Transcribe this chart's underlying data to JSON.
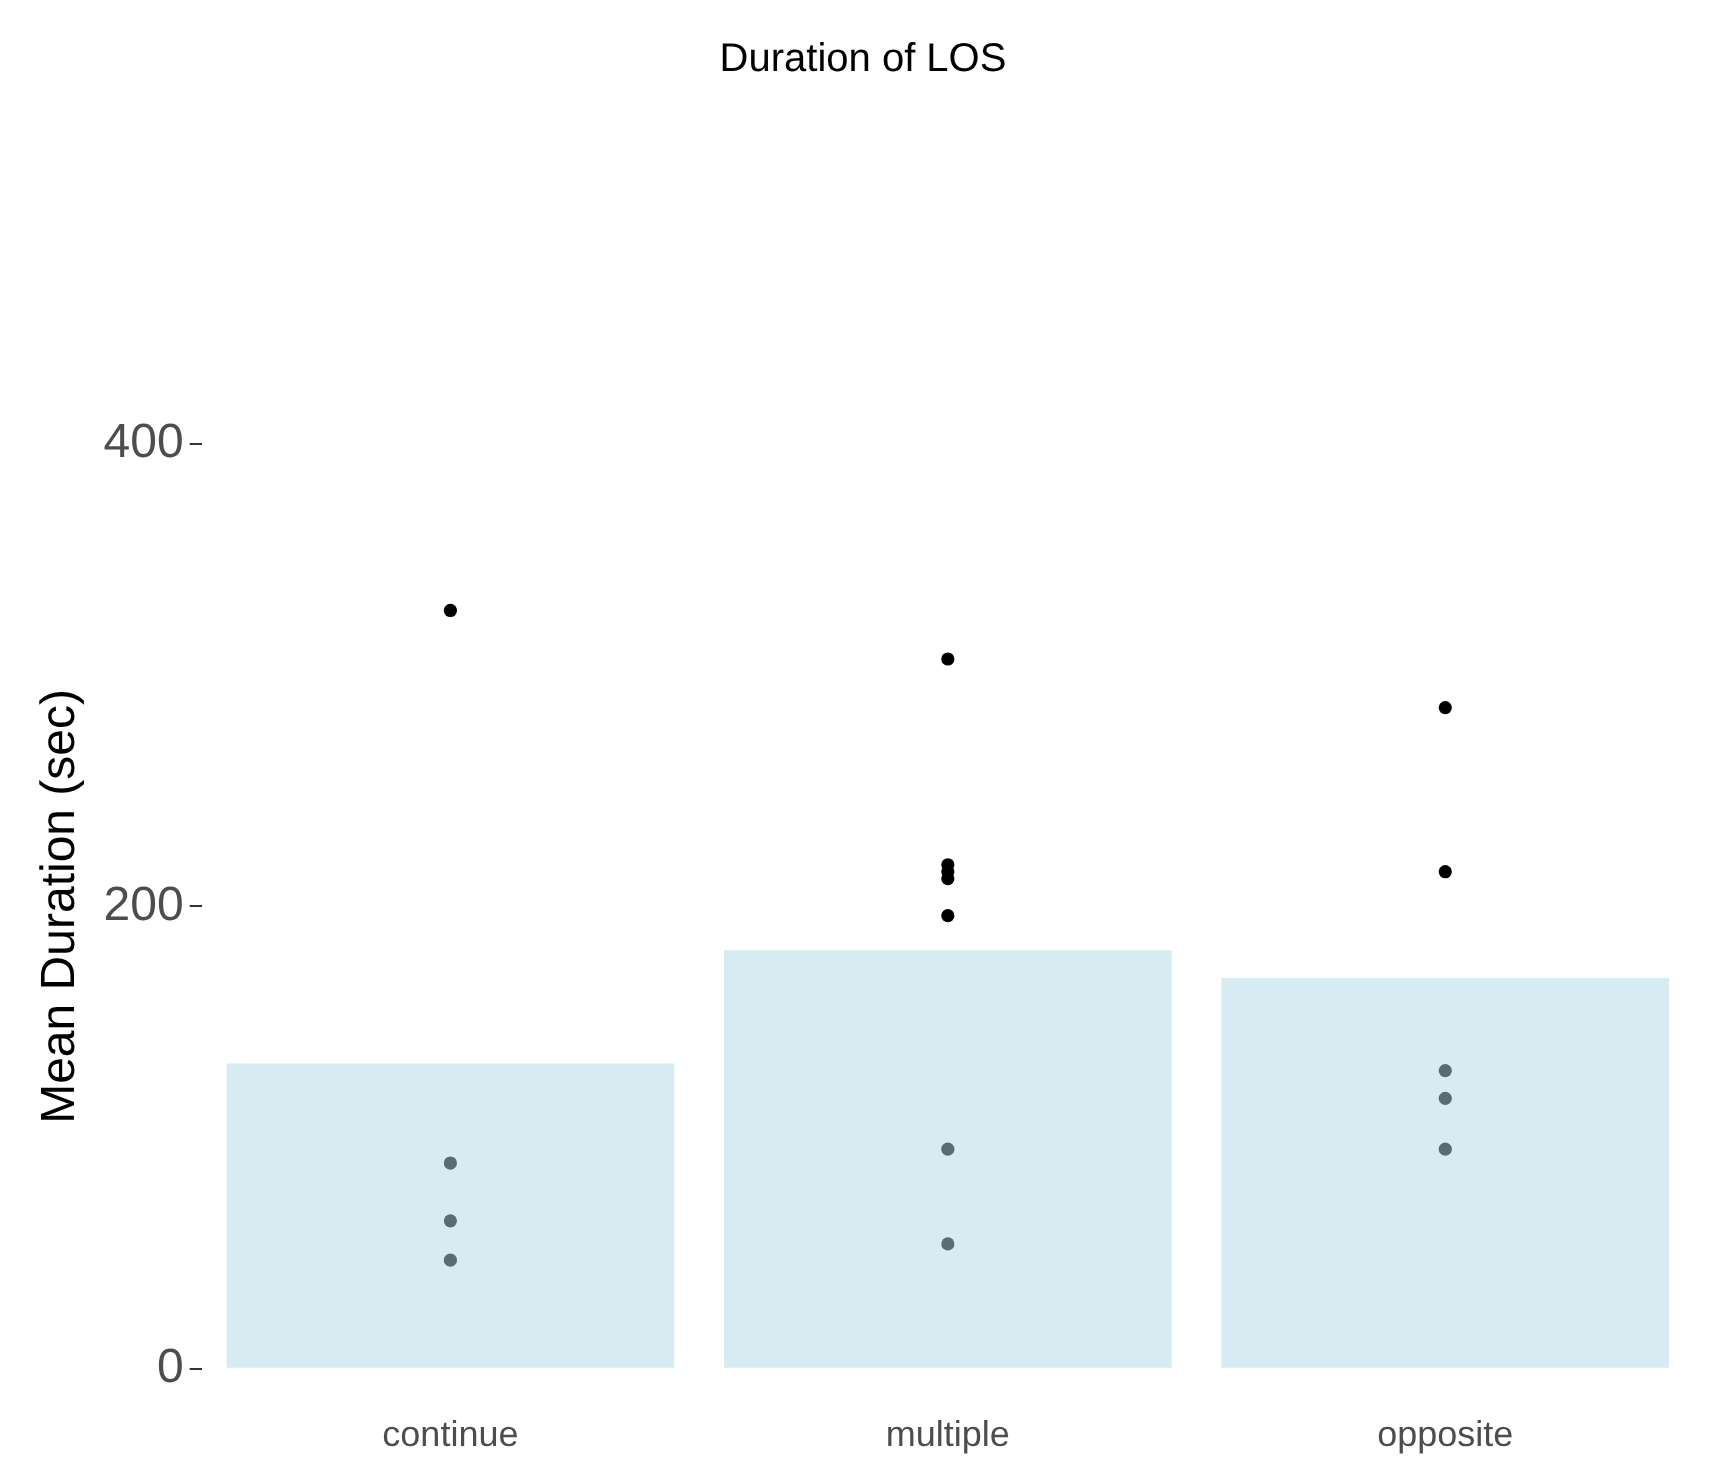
{
  "chart_data": {
    "type": "bar",
    "title": "Duration of LOS",
    "ylabel": "Mean Duration (sec)",
    "categories": [
      "continue",
      "multiple",
      "opposite"
    ],
    "series": [
      {
        "color": "#add8e6",
        "values": [
          132,
          181,
          169
        ]
      },
      {
        "type": "scatter",
        "color": "#000000",
        "x": [
          "continue",
          "continue",
          "continue",
          "continue",
          "multiple",
          "multiple",
          "multiple",
          "multiple",
          "multiple",
          "multiple",
          "multiple",
          "opposite",
          "opposite",
          "opposite",
          "opposite",
          "opposite"
        ],
        "values": [
          328,
          89,
          64,
          47,
          307,
          218,
          215,
          212,
          196,
          95,
          54,
          286,
          215,
          129,
          117,
          95
        ]
      }
    ],
    "ylim": [
      0,
      400
    ],
    "yticks": [
      0,
      200,
      400
    ],
    "grid": false,
    "legend": false,
    "marker": "circle"
  }
}
